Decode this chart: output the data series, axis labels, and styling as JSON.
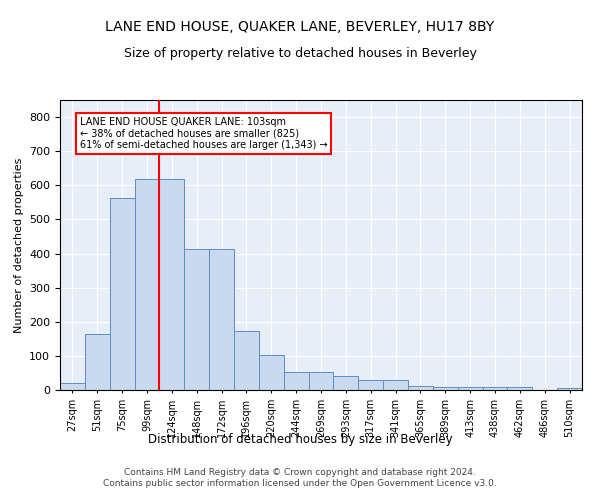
{
  "title": "LANE END HOUSE, QUAKER LANE, BEVERLEY, HU17 8BY",
  "subtitle": "Size of property relative to detached houses in Beverley",
  "xlabel": "Distribution of detached houses by size in Beverley",
  "ylabel": "Number of detached properties",
  "bar_values": [
    20,
    163,
    563,
    617,
    617,
    413,
    413,
    172,
    103,
    53,
    53,
    40,
    30,
    30,
    13,
    10,
    10,
    8,
    8,
    0,
    7
  ],
  "categories": [
    "27sqm",
    "51sqm",
    "75sqm",
    "99sqm",
    "124sqm",
    "148sqm",
    "172sqm",
    "196sqm",
    "220sqm",
    "244sqm",
    "269sqm",
    "293sqm",
    "317sqm",
    "341sqm",
    "365sqm",
    "389sqm",
    "413sqm",
    "438sqm",
    "462sqm",
    "486sqm",
    "510sqm"
  ],
  "bar_color": "#c9d9f0",
  "bar_edge_color": "#5a8fc2",
  "red_line_x": 3.5,
  "annotation_text": "LANE END HOUSE QUAKER LANE: 103sqm\n← 38% of detached houses are smaller (825)\n61% of semi-detached houses are larger (1,343) →",
  "annotation_box_color": "white",
  "annotation_box_edge_color": "red",
  "red_line_color": "red",
  "ylim": [
    0,
    850
  ],
  "yticks": [
    0,
    100,
    200,
    300,
    400,
    500,
    600,
    700,
    800
  ],
  "background_color": "#e8eef8",
  "footer": "Contains HM Land Registry data © Crown copyright and database right 2024.\nContains public sector information licensed under the Open Government Licence v3.0.",
  "title_fontsize": 10,
  "subtitle_fontsize": 9,
  "footer_fontsize": 6.5
}
